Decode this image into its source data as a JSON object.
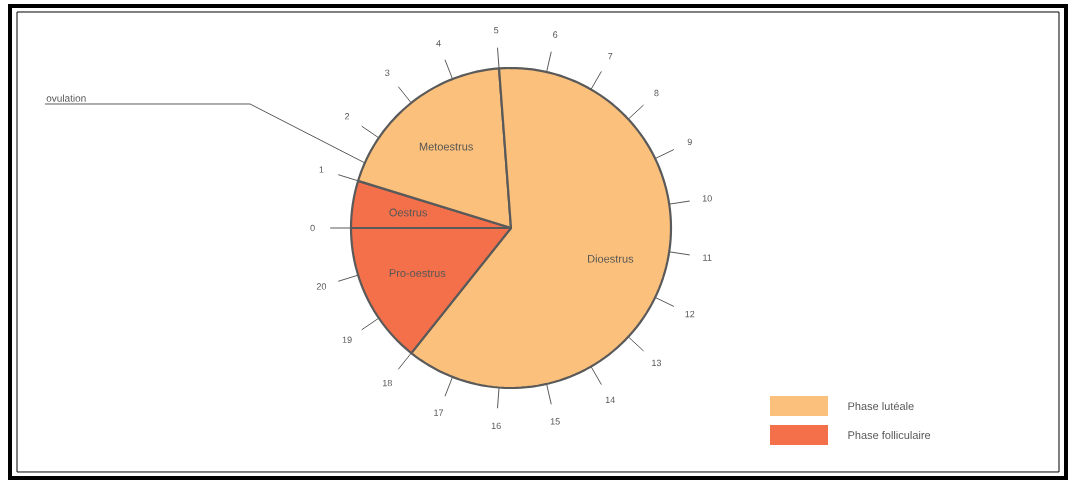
{
  "chart_data": {
    "type": "pie",
    "categories": [
      "Oestrus",
      "Metoestrus",
      "Dioestrus",
      "Pro-oestrus"
    ],
    "values": [
      4.76,
      19.05,
      61.9,
      14.29
    ],
    "colors": [
      "#f4704a",
      "#fbc07b",
      "#fbc07b",
      "#f4704a"
    ],
    "annotations": [
      "ovulation",
      "Phase lutéale",
      "Phase folliculaire",
      "0",
      "1",
      "2",
      "3",
      "4",
      "5",
      "6",
      "7",
      "8",
      "9",
      "10",
      "11",
      "12",
      "13",
      "14",
      "15",
      "16",
      "17",
      "18",
      "19",
      "20"
    ]
  }
}
